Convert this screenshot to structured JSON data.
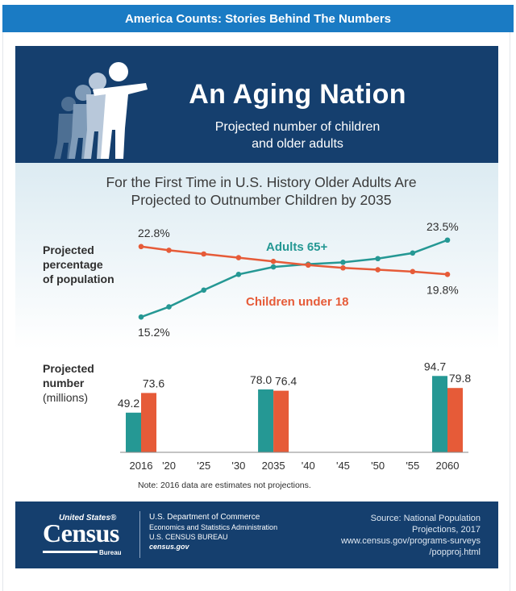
{
  "page": {
    "banner": "America Counts: Stories Behind The Numbers"
  },
  "infographic": {
    "title": "An Aging Nation",
    "subtitle_line1": "Projected number of children",
    "subtitle_line2": "and older adults",
    "headline_line1": "For the First Time in U.S. History Older Adults Are",
    "headline_line2": "Projected to Outnumber Children by 2035",
    "colors": {
      "navy": "#153f6e",
      "teal": "#259894",
      "orange": "#e65b38"
    }
  },
  "footer": {
    "logo_top": "United States®",
    "logo_main": "Census",
    "logo_bottom": "Bureau",
    "agency_line1": "U.S. Department of Commerce",
    "agency_line2": "Economics and Statistics Administration",
    "agency_line3": "U.S. CENSUS BUREAU",
    "agency_line4": "census.gov",
    "source_line1": "Source: National Population",
    "source_line2": "Projections, 2017",
    "source_line3": "www.census.gov/programs-surveys",
    "source_line4": "/popproj.html"
  },
  "chart_data": [
    {
      "type": "line",
      "ylabel_line1": "Projected",
      "ylabel_line2": "percentage",
      "ylabel_line3": "of population",
      "x": [
        2016,
        2020,
        2025,
        2030,
        2035,
        2040,
        2045,
        2050,
        2055,
        2060
      ],
      "series": [
        {
          "name": "Adults 65+",
          "color": "#259894",
          "values": [
            15.2,
            16.3,
            18.1,
            19.8,
            20.6,
            20.9,
            21.1,
            21.5,
            22.1,
            23.5
          ],
          "start_label": "15.2%",
          "end_label": "23.5%"
        },
        {
          "name": "Children under 18",
          "color": "#e65b38",
          "values": [
            22.8,
            22.4,
            22.0,
            21.6,
            21.2,
            20.8,
            20.5,
            20.3,
            20.1,
            19.8
          ],
          "start_label": "22.8%",
          "end_label": "19.8%"
        }
      ],
      "ylim": [
        14,
        24
      ]
    },
    {
      "type": "bar",
      "ylabel_line1": "Projected",
      "ylabel_line2": "number",
      "ylabel_line3": "(millions)",
      "tick_labels": [
        "2016",
        "'20",
        "'25",
        "'30",
        "2035",
        "'40",
        "'45",
        "'50",
        "'55",
        "2060"
      ],
      "categories": [
        "2016",
        "2035",
        "2060"
      ],
      "series": [
        {
          "name": "Adults 65+",
          "color": "#259894",
          "values": [
            49.2,
            78.0,
            94.7
          ],
          "labels": [
            "49.2",
            "78.0",
            "94.7"
          ]
        },
        {
          "name": "Children under 18",
          "color": "#e65b38",
          "values": [
            73.6,
            76.4,
            79.8
          ],
          "labels": [
            "73.6",
            "76.4",
            "79.8"
          ]
        }
      ],
      "note": "Note: 2016 data are estimates not projections.",
      "ylim": [
        0,
        100
      ]
    }
  ]
}
